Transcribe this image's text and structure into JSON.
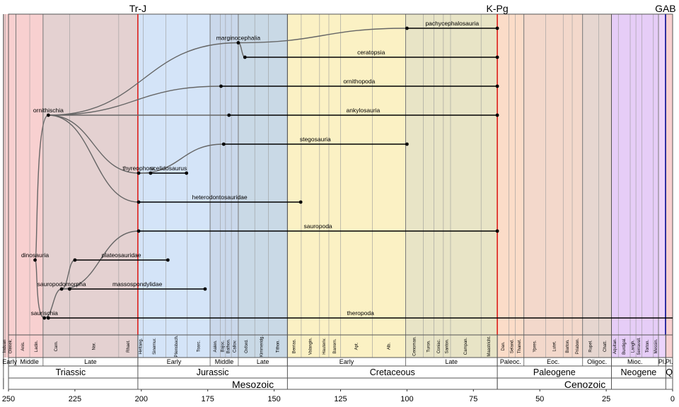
{
  "chart_data": {
    "type": "line",
    "title": "",
    "xlabel": "",
    "ylabel": "",
    "xlim": [
      250,
      0
    ],
    "x_ticks": [
      250,
      225,
      200,
      175,
      150,
      125,
      100,
      75,
      50,
      25,
      0
    ],
    "events": [
      {
        "label": "Tr-J",
        "ma": 201.3,
        "color": "#e0201b"
      },
      {
        "label": "K-Pg",
        "ma": 66.0,
        "color": "#e0201b"
      },
      {
        "label": "GAB",
        "ma": 2.7,
        "color": "#1c1ca6"
      }
    ],
    "eras": [
      {
        "name": "Mesozoic",
        "start": 251.9,
        "end": 66.0
      },
      {
        "name": "Cenozoic",
        "start": 66.0,
        "end": 0
      }
    ],
    "periods": [
      {
        "name": "Triassic",
        "start": 251.9,
        "end": 201.3,
        "color": "#f8d0d0"
      },
      {
        "name": "Jurassic",
        "start": 201.3,
        "end": 145.0,
        "color": "#d4e4f8"
      },
      {
        "name": "Cretaceous",
        "start": 145.0,
        "end": 66.0,
        "color": "#fbf1c4"
      },
      {
        "name": "Paleogene",
        "start": 66.0,
        "end": 23.03,
        "color": "#fbdcc8"
      },
      {
        "name": "Neogene",
        "start": 23.03,
        "end": 2.58,
        "color": "#ecd4fb"
      },
      {
        "name": "Q",
        "start": 2.58,
        "end": 0,
        "color": "#f8d0d0"
      }
    ],
    "epochs": [
      {
        "name": "Early",
        "start": 251.9,
        "end": 247.2
      },
      {
        "name": "Middle",
        "start": 247.2,
        "end": 237.0
      },
      {
        "name": "Late",
        "start": 237.0,
        "end": 201.3
      },
      {
        "name": "Early",
        "start": 201.3,
        "end": 174.1
      },
      {
        "name": "Middle",
        "start": 174.1,
        "end": 163.5
      },
      {
        "name": "Late",
        "start": 163.5,
        "end": 145.0
      },
      {
        "name": "Early",
        "start": 145.0,
        "end": 100.5
      },
      {
        "name": "Late",
        "start": 100.5,
        "end": 66.0
      },
      {
        "name": "Paleoc.",
        "start": 66.0,
        "end": 56.0
      },
      {
        "name": "Eoc.",
        "start": 56.0,
        "end": 33.9
      },
      {
        "name": "Oligoc.",
        "start": 33.9,
        "end": 23.03
      },
      {
        "name": "Mioc.",
        "start": 23.03,
        "end": 5.33
      },
      {
        "name": "Pl.",
        "start": 5.33,
        "end": 2.58
      },
      {
        "name": "Pl.",
        "start": 2.58,
        "end": 0
      }
    ],
    "stages": [
      {
        "name": "Induan",
        "start": 251.9,
        "end": 251.2
      },
      {
        "name": "Olenek.",
        "start": 251.2,
        "end": 247.2
      },
      {
        "name": "Anis.",
        "start": 247.2,
        "end": 242.0
      },
      {
        "name": "Ladin.",
        "start": 242.0,
        "end": 237.0
      },
      {
        "name": "Carn.",
        "start": 237.0,
        "end": 227.0
      },
      {
        "name": "Nor.",
        "start": 227.0,
        "end": 208.5
      },
      {
        "name": "Rhaet.",
        "start": 208.5,
        "end": 201.3
      },
      {
        "name": "Hettang.",
        "start": 201.3,
        "end": 199.3
      },
      {
        "name": "Sinemur.",
        "start": 199.3,
        "end": 190.8
      },
      {
        "name": "Pliensbach.",
        "start": 190.8,
        "end": 182.7
      },
      {
        "name": "Toarc.",
        "start": 182.7,
        "end": 174.1
      },
      {
        "name": "Aalen.",
        "start": 174.1,
        "end": 170.3
      },
      {
        "name": "Bajoc.",
        "start": 170.3,
        "end": 168.3
      },
      {
        "name": "Bathon.",
        "start": 168.3,
        "end": 166.1
      },
      {
        "name": "Callov.",
        "start": 166.1,
        "end": 163.5
      },
      {
        "name": "Oxford.",
        "start": 163.5,
        "end": 157.3
      },
      {
        "name": "Kimmeridg.",
        "start": 157.3,
        "end": 152.1
      },
      {
        "name": "Tithon.",
        "start": 152.1,
        "end": 145.0
      },
      {
        "name": "Berrias.",
        "start": 145.0,
        "end": 139.8
      },
      {
        "name": "Valangin.",
        "start": 139.8,
        "end": 132.9
      },
      {
        "name": "Hauteriv.",
        "start": 132.9,
        "end": 129.4
      },
      {
        "name": "Barrem.",
        "start": 129.4,
        "end": 125.0
      },
      {
        "name": "Apt.",
        "start": 125.0,
        "end": 113.0
      },
      {
        "name": "Alb.",
        "start": 113.0,
        "end": 100.5
      },
      {
        "name": "Cenoman.",
        "start": 100.5,
        "end": 93.9
      },
      {
        "name": "Turon.",
        "start": 93.9,
        "end": 89.8
      },
      {
        "name": "Coniac.",
        "start": 89.8,
        "end": 86.3
      },
      {
        "name": "Santon.",
        "start": 86.3,
        "end": 83.6
      },
      {
        "name": "Campan.",
        "start": 83.6,
        "end": 72.1
      },
      {
        "name": "Maastricht.",
        "start": 72.1,
        "end": 66.0
      },
      {
        "name": "Dan.",
        "start": 66.0,
        "end": 61.6
      },
      {
        "name": "Seland.",
        "start": 61.6,
        "end": 59.2
      },
      {
        "name": "Thanet.",
        "start": 59.2,
        "end": 56.0
      },
      {
        "name": "Ypres.",
        "start": 56.0,
        "end": 47.8
      },
      {
        "name": "Lutet.",
        "start": 47.8,
        "end": 41.2
      },
      {
        "name": "Barton.",
        "start": 41.2,
        "end": 37.8
      },
      {
        "name": "Priabon.",
        "start": 37.8,
        "end": 33.9
      },
      {
        "name": "Rupel.",
        "start": 33.9,
        "end": 27.8
      },
      {
        "name": "Chatt.",
        "start": 27.8,
        "end": 23.03
      },
      {
        "name": "Aquitan.",
        "start": 23.03,
        "end": 20.44
      },
      {
        "name": "Burdigal.",
        "start": 20.44,
        "end": 15.97
      },
      {
        "name": "Langh.",
        "start": 15.97,
        "end": 13.82
      },
      {
        "name": "Serravall.",
        "start": 13.82,
        "end": 11.63
      },
      {
        "name": "Torton.",
        "start": 11.63,
        "end": 7.25
      },
      {
        "name": "Messin.",
        "start": 7.25,
        "end": 5.33
      },
      {
        "name": "",
        "start": 5.33,
        "end": 0
      }
    ],
    "nodes": [
      {
        "name": "dinosauria",
        "ma": 240.0,
        "row": 8
      },
      {
        "name": "ornithischia",
        "ma": 235.0,
        "row": 3
      },
      {
        "name": "saurischia",
        "ma": 236.5,
        "row": 10
      },
      {
        "name": "sauropodomorpha",
        "ma": 230.0,
        "row": 9
      },
      {
        "name": "thyreophora",
        "ma": 201.0,
        "row": 5
      },
      {
        "name": "marginocephalia",
        "ma": 163.5,
        "row": 0.5
      }
    ],
    "taxa": [
      {
        "name": "pachycephalosauria",
        "start": 100.0,
        "end": 66.0,
        "row": 0
      },
      {
        "name": "ceratopsia",
        "start": 161.0,
        "end": 66.0,
        "row": 1
      },
      {
        "name": "ornithopoda",
        "start": 170.0,
        "end": 66.0,
        "row": 2
      },
      {
        "name": "ankylosauria",
        "start": 167.0,
        "end": 66.0,
        "row": 3
      },
      {
        "name": "stegosauria",
        "start": 169.0,
        "end": 100.0,
        "row": 4
      },
      {
        "name": "scelidosaurus",
        "start": 196.5,
        "end": 183.0,
        "row": 5
      },
      {
        "name": "heterodontosauridae",
        "start": 201.0,
        "end": 140.0,
        "row": 6
      },
      {
        "name": "sauropoda",
        "start": 201.0,
        "end": 66.0,
        "row": 7
      },
      {
        "name": "plateosauridae",
        "start": 225.0,
        "end": 190.0,
        "row": 8
      },
      {
        "name": "massospondylidae",
        "start": 227.0,
        "end": 176.0,
        "row": 9
      },
      {
        "name": "theropoda",
        "start": 235.0,
        "end": 0,
        "row": 10
      }
    ],
    "edges": [
      {
        "from": "dinosauria",
        "to": "ornithischia"
      },
      {
        "from": "dinosauria",
        "to": "saurischia"
      },
      {
        "from": "ornithischia",
        "to": "marginocephalia"
      },
      {
        "from": "ornithischia",
        "to": "ornithopoda"
      },
      {
        "from": "ornithischia",
        "to": "ankylosauria"
      },
      {
        "from": "ornithischia",
        "to": "thyreophora"
      },
      {
        "from": "ornithischia",
        "to": "heterodontosauridae"
      },
      {
        "from": "marginocephalia",
        "to": "pachycephalosauria"
      },
      {
        "from": "marginocephalia",
        "to": "ceratopsia"
      },
      {
        "from": "thyreophora",
        "to": "stegosauria"
      },
      {
        "from": "thyreophora",
        "to": "scelidosaurus"
      },
      {
        "from": "saurischia",
        "to": "sauropodomorpha"
      },
      {
        "from": "saurischia",
        "to": "theropoda"
      },
      {
        "from": "sauropodomorpha",
        "to": "sauropoda"
      },
      {
        "from": "sauropodomorpha",
        "to": "plateosauridae"
      },
      {
        "from": "sauropodomorpha",
        "to": "massospondylidae"
      }
    ]
  }
}
